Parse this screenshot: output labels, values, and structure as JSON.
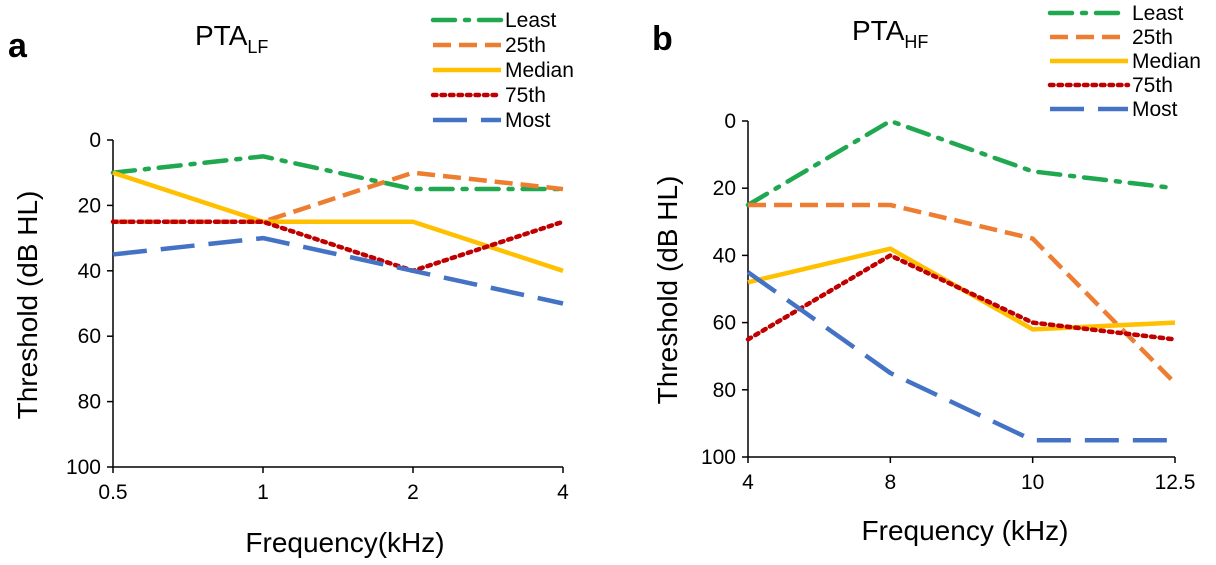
{
  "chart_data": [
    {
      "type": "line",
      "panel_label": "a",
      "title": "PTA",
      "title_subscript": "LF",
      "xlabel": "Frequency(kHz)",
      "ylabel": "Threshold (dB HL)",
      "categories": [
        "0.5",
        "1",
        "2",
        "4"
      ],
      "ylim": [
        100,
        0
      ],
      "yticks": [
        "0",
        "20",
        "40",
        "60",
        "80",
        "100"
      ],
      "grid": false,
      "legend_position": "top-right",
      "series": [
        {
          "name": "Least",
          "values": [
            10,
            5,
            15,
            15
          ],
          "color": "#1fa84f",
          "style": "dash-dot"
        },
        {
          "name": "25th",
          "values": [
            25,
            25,
            10,
            15
          ],
          "color": "#ed7d31",
          "style": "dashed"
        },
        {
          "name": "Median",
          "values": [
            10,
            25,
            25,
            40
          ],
          "color": "#ffc000",
          "style": "solid"
        },
        {
          "name": "75th",
          "values": [
            25,
            25,
            40,
            25
          ],
          "color": "#c00000",
          "style": "dotted"
        },
        {
          "name": "Most",
          "values": [
            35,
            30,
            40,
            50
          ],
          "color": "#4472c4",
          "style": "long-dash"
        }
      ]
    },
    {
      "type": "line",
      "panel_label": "b",
      "title": "PTA",
      "title_subscript": "HF",
      "xlabel": "Frequency (kHz)",
      "ylabel": "Threshold (dB HL)",
      "categories": [
        "4",
        "8",
        "10",
        "12.5"
      ],
      "ylim": [
        100,
        0
      ],
      "yticks": [
        "0",
        "20",
        "40",
        "60",
        "80",
        "100"
      ],
      "grid": false,
      "legend_position": "top-right",
      "series": [
        {
          "name": "Least",
          "values": [
            25,
            0,
            15,
            20
          ],
          "color": "#1fa84f",
          "style": "dash-dot"
        },
        {
          "name": "25th",
          "values": [
            25,
            25,
            35,
            78
          ],
          "color": "#ed7d31",
          "style": "dashed"
        },
        {
          "name": "Median",
          "values": [
            48,
            38,
            62,
            60
          ],
          "color": "#ffc000",
          "style": "solid"
        },
        {
          "name": "75th",
          "values": [
            65,
            40,
            60,
            65
          ],
          "color": "#c00000",
          "style": "dotted"
        },
        {
          "name": "Most",
          "values": [
            45,
            75,
            95,
            95
          ],
          "color": "#4472c4",
          "style": "long-dash"
        }
      ]
    }
  ]
}
